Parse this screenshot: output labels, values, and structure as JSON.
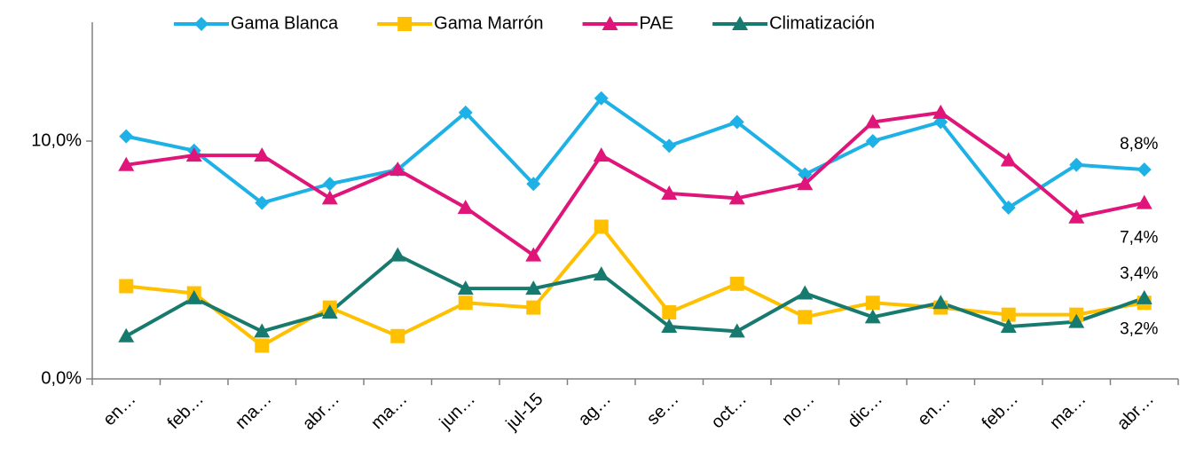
{
  "chart_data": {
    "type": "line",
    "categories": [
      "en…",
      "feb…",
      "ma…",
      "abr…",
      "ma…",
      "jun…",
      "jul-15",
      "ag…",
      "se…",
      "oct…",
      "no…",
      "dic…",
      "en…",
      "feb…",
      "ma…",
      "abr…"
    ],
    "series": [
      {
        "name": "Gama Blanca",
        "color": "#1eb1e6",
        "marker": "diamond",
        "values": [
          10.2,
          9.6,
          7.4,
          8.2,
          8.8,
          11.2,
          8.2,
          11.8,
          9.8,
          10.8,
          8.6,
          10.0,
          10.8,
          7.2,
          9.0,
          8.8
        ],
        "value_labels": [
          null,
          null,
          null,
          null,
          null,
          null,
          null,
          null,
          null,
          null,
          null,
          null,
          null,
          null,
          null,
          "8,8%"
        ]
      },
      {
        "name": "Gama Marrón",
        "color": "#ffc000",
        "marker": "square",
        "values": [
          3.9,
          3.6,
          1.4,
          3.0,
          1.8,
          3.2,
          3.0,
          6.4,
          2.8,
          4.0,
          2.6,
          3.2,
          3.0,
          2.7,
          2.7,
          3.2
        ],
        "value_labels": [
          null,
          null,
          null,
          null,
          null,
          null,
          null,
          null,
          null,
          null,
          null,
          null,
          null,
          null,
          null,
          "3,2%"
        ]
      },
      {
        "name": "PAE",
        "color": "#e0157a",
        "marker": "triangle",
        "values": [
          9.0,
          9.4,
          9.4,
          7.6,
          8.8,
          7.2,
          5.2,
          9.4,
          7.8,
          7.6,
          8.2,
          10.8,
          11.2,
          9.2,
          6.8,
          7.4
        ],
        "value_labels": [
          null,
          null,
          null,
          null,
          null,
          null,
          null,
          null,
          null,
          null,
          null,
          null,
          null,
          null,
          null,
          "7,4%"
        ]
      },
      {
        "name": "Climatización",
        "color": "#177a6e",
        "marker": "triangle",
        "values": [
          1.8,
          3.4,
          2.0,
          2.8,
          5.2,
          3.8,
          3.8,
          4.4,
          2.2,
          2.0,
          3.6,
          2.6,
          3.2,
          2.2,
          2.4,
          3.4
        ],
        "value_labels": [
          null,
          null,
          null,
          null,
          null,
          null,
          null,
          null,
          null,
          null,
          null,
          null,
          null,
          null,
          null,
          "3,4%"
        ]
      }
    ],
    "ylim": [
      0,
      15
    ],
    "yticks": [
      {
        "value": 0,
        "label": "0,0%"
      },
      {
        "value": 10,
        "label": "10,0%"
      }
    ],
    "grid": false,
    "legend": "top"
  }
}
